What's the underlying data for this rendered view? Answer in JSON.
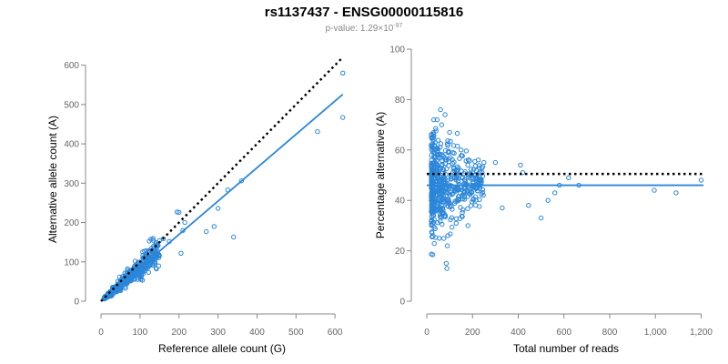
{
  "title": "rs1137437 - ENSG00000115816",
  "subtitle": {
    "prefix": "p-value: 1.29×10",
    "exponent": "-97"
  },
  "colors": {
    "points": "#2b86d9",
    "fit": "#2b86d9",
    "reference": "#000000",
    "axis": "#888888",
    "ticks": "#666666"
  },
  "chart_data": [
    {
      "type": "scatter",
      "id": "allele-counts",
      "xlabel": "Reference allele count (G)",
      "ylabel": "Alternative allele count (A)",
      "xlim": [
        0,
        630
      ],
      "ylim": [
        0,
        620
      ],
      "xticks": [
        0,
        100,
        200,
        300,
        400,
        500,
        600
      ],
      "yticks": [
        0,
        100,
        200,
        300,
        400,
        500,
        600
      ],
      "xtick_labels": [
        "0",
        "100",
        "200",
        "300",
        "400",
        "500",
        "600"
      ],
      "ytick_labels": [
        "0",
        "100",
        "200",
        "300",
        "400",
        "500",
        "600"
      ],
      "reference_line": {
        "style": "dotted",
        "x": [
          0,
          620
        ],
        "y": [
          0,
          620
        ]
      },
      "fit_line": {
        "style": "solid",
        "x": [
          0,
          620
        ],
        "y": [
          0,
          526
        ]
      },
      "highlighted_points": [
        {
          "x": 620,
          "y": 580
        },
        {
          "x": 620,
          "y": 467
        },
        {
          "x": 555,
          "y": 431
        },
        {
          "x": 360,
          "y": 306
        },
        {
          "x": 340,
          "y": 163
        },
        {
          "x": 325,
          "y": 283
        },
        {
          "x": 300,
          "y": 236
        },
        {
          "x": 290,
          "y": 190
        },
        {
          "x": 270,
          "y": 177
        },
        {
          "x": 200,
          "y": 226
        },
        {
          "x": 195,
          "y": 227
        },
        {
          "x": 205,
          "y": 122
        },
        {
          "x": 210,
          "y": 180
        },
        {
          "x": 215,
          "y": 200
        },
        {
          "x": 175,
          "y": 152
        },
        {
          "x": 160,
          "y": 159
        }
      ],
      "cluster": {
        "n": 560,
        "x_range": [
          8,
          150
        ],
        "ratio_mean": 0.85,
        "ratio_sd": 0.13
      }
    },
    {
      "type": "scatter",
      "id": "percentage-vs-reads",
      "xlabel": "Total number of reads",
      "ylabel": "Percentage alternative (A)",
      "xlim": [
        0,
        1210
      ],
      "ylim": [
        0,
        100
      ],
      "xticks": [
        0,
        200,
        400,
        600,
        800,
        1000,
        1200
      ],
      "yticks": [
        0,
        20,
        40,
        60,
        80,
        100
      ],
      "xtick_labels": [
        "0",
        "200",
        "400",
        "600",
        "800",
        "1,000",
        "1,200"
      ],
      "ytick_labels": [
        "0",
        "20",
        "40",
        "60",
        "80",
        "100"
      ],
      "reference_line": {
        "style": "dotted",
        "x": [
          0,
          1210
        ],
        "y": [
          50.5,
          50.5
        ]
      },
      "fit_line": {
        "style": "solid",
        "x": [
          0,
          1210
        ],
        "y": [
          46,
          46
        ]
      },
      "highlighted_points": [
        {
          "x": 1200,
          "y": 48
        },
        {
          "x": 1090,
          "y": 43
        },
        {
          "x": 995,
          "y": 44
        },
        {
          "x": 665,
          "y": 46
        },
        {
          "x": 620,
          "y": 49
        },
        {
          "x": 580,
          "y": 46
        },
        {
          "x": 560,
          "y": 43
        },
        {
          "x": 530,
          "y": 40
        },
        {
          "x": 500,
          "y": 33
        },
        {
          "x": 445,
          "y": 38
        },
        {
          "x": 420,
          "y": 51
        },
        {
          "x": 410,
          "y": 54
        },
        {
          "x": 300,
          "y": 55
        },
        {
          "x": 330,
          "y": 37
        },
        {
          "x": 60,
          "y": 76
        },
        {
          "x": 80,
          "y": 74
        },
        {
          "x": 65,
          "y": 70
        },
        {
          "x": 100,
          "y": 67
        },
        {
          "x": 85,
          "y": 15
        },
        {
          "x": 88,
          "y": 13
        },
        {
          "x": 90,
          "y": 22
        },
        {
          "x": 55,
          "y": 25
        },
        {
          "x": 150,
          "y": 60
        },
        {
          "x": 250,
          "y": 55
        },
        {
          "x": 180,
          "y": 30
        }
      ],
      "cluster": {
        "n": 560,
        "x_range": [
          20,
          250
        ],
        "mean": 46,
        "sd": 8
      }
    }
  ]
}
